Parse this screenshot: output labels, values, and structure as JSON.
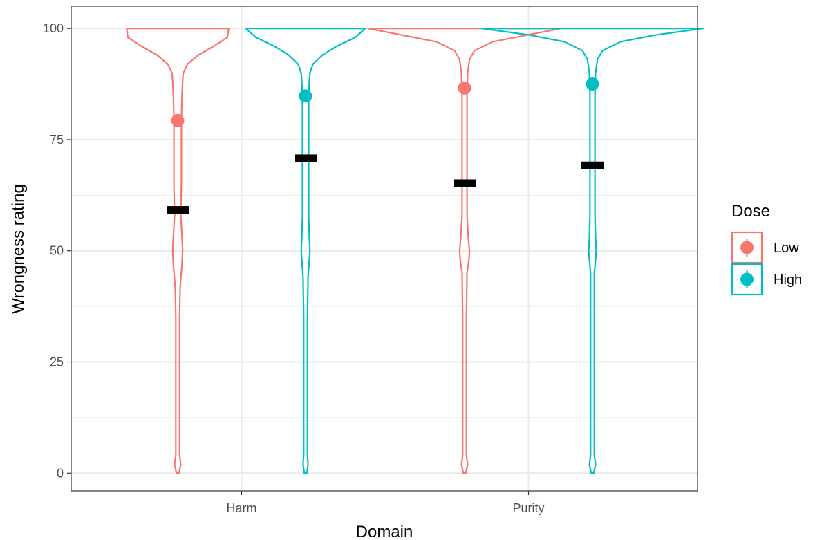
{
  "chart_data": {
    "type": "violin",
    "xlabel": "Domain",
    "ylabel": "Wrongness rating",
    "ylim": [
      -4,
      105
    ],
    "y_ticks": [
      0,
      25,
      50,
      75,
      100
    ],
    "y_tick_labels": [
      "0",
      "25",
      "50",
      "75",
      "100"
    ],
    "categories": [
      "Harm",
      "Purity"
    ],
    "legend": {
      "title": "Dose",
      "placement": "right",
      "entries": [
        "Low",
        "High"
      ]
    },
    "grid": true,
    "colors": {
      "Low": "#F8766D",
      "High": "#00BFC4",
      "median_bar": "#000000"
    },
    "series": [
      {
        "name": "Low",
        "mean": [
          79.3,
          86.6
        ],
        "median_bar": [
          59.2,
          65.2
        ]
      },
      {
        "name": "High",
        "mean": [
          84.8,
          87.5
        ],
        "median_bar": [
          70.8,
          69.2
        ]
      }
    ],
    "violin_density": [
      {
        "category": "Harm",
        "series": "Low",
        "profile": [
          [
            0,
            0.02
          ],
          [
            2,
            0.05
          ],
          [
            4,
            0.03
          ],
          [
            10,
            0.03
          ],
          [
            20,
            0.03
          ],
          [
            35,
            0.03
          ],
          [
            42,
            0.04
          ],
          [
            47,
            0.07
          ],
          [
            50,
            0.08
          ],
          [
            53,
            0.07
          ],
          [
            58,
            0.05
          ],
          [
            65,
            0.06
          ],
          [
            75,
            0.06
          ],
          [
            80,
            0.06
          ],
          [
            85,
            0.07
          ],
          [
            88,
            0.08
          ],
          [
            90,
            0.09
          ],
          [
            92,
            0.16
          ],
          [
            94,
            0.33
          ],
          [
            96,
            0.58
          ],
          [
            98,
            0.8
          ],
          [
            100,
            0.82
          ]
        ]
      },
      {
        "category": "Harm",
        "series": "High",
        "profile": [
          [
            0,
            0.02
          ],
          [
            2,
            0.04
          ],
          [
            4,
            0.03
          ],
          [
            10,
            0.03
          ],
          [
            20,
            0.03
          ],
          [
            35,
            0.03
          ],
          [
            44,
            0.04
          ],
          [
            48,
            0.06
          ],
          [
            50,
            0.07
          ],
          [
            53,
            0.06
          ],
          [
            58,
            0.05
          ],
          [
            65,
            0.05
          ],
          [
            75,
            0.05
          ],
          [
            80,
            0.05
          ],
          [
            85,
            0.05
          ],
          [
            88,
            0.06
          ],
          [
            90,
            0.07
          ],
          [
            92,
            0.12
          ],
          [
            94,
            0.27
          ],
          [
            96,
            0.5
          ],
          [
            98,
            0.8
          ],
          [
            100,
            0.96
          ]
        ]
      },
      {
        "category": "Purity",
        "series": "Low",
        "profile": [
          [
            0,
            0.02
          ],
          [
            2,
            0.05
          ],
          [
            4,
            0.03
          ],
          [
            10,
            0.03
          ],
          [
            20,
            0.03
          ],
          [
            35,
            0.03
          ],
          [
            45,
            0.04
          ],
          [
            48,
            0.07
          ],
          [
            50,
            0.08
          ],
          [
            53,
            0.06
          ],
          [
            58,
            0.04
          ],
          [
            65,
            0.04
          ],
          [
            75,
            0.04
          ],
          [
            85,
            0.04
          ],
          [
            90,
            0.05
          ],
          [
            93,
            0.08
          ],
          [
            95,
            0.16
          ],
          [
            97,
            0.45
          ],
          [
            98.5,
            1.0
          ],
          [
            100,
            1.55
          ]
        ]
      },
      {
        "category": "Purity",
        "series": "High",
        "profile": [
          [
            0,
            0.02
          ],
          [
            2,
            0.05
          ],
          [
            4,
            0.03
          ],
          [
            10,
            0.03
          ],
          [
            20,
            0.03
          ],
          [
            35,
            0.03
          ],
          [
            45,
            0.03
          ],
          [
            48,
            0.05
          ],
          [
            50,
            0.06
          ],
          [
            53,
            0.05
          ],
          [
            58,
            0.04
          ],
          [
            65,
            0.04
          ],
          [
            75,
            0.04
          ],
          [
            85,
            0.04
          ],
          [
            90,
            0.05
          ],
          [
            93,
            0.08
          ],
          [
            95,
            0.16
          ],
          [
            97,
            0.45
          ],
          [
            98.5,
            1.0
          ],
          [
            100,
            1.78
          ]
        ]
      }
    ]
  }
}
